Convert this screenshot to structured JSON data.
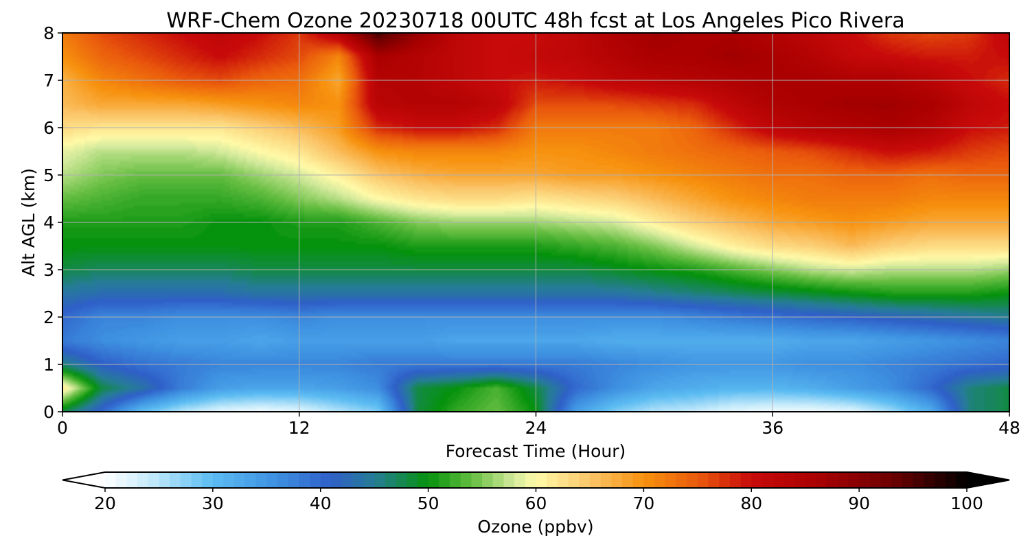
{
  "chart_data": {
    "type": "heatmap",
    "title": "WRF-Chem Ozone  20230718 00UTC 48h fcst at Los Angeles Pico Rivera",
    "xlabel": "Forecast Time (Hour)",
    "ylabel": "Alt AGL (km)",
    "xlim": [
      0,
      48
    ],
    "ylim": [
      0,
      8
    ],
    "xticks": [
      "0",
      "12",
      "24",
      "36",
      "48"
    ],
    "yticks": [
      "0",
      "1",
      "2",
      "3",
      "4",
      "5",
      "6",
      "7",
      "8"
    ],
    "grid": true,
    "colorbar": {
      "label": "Ozone  (ppbv)",
      "range": [
        20,
        100
      ],
      "extend": "both",
      "ticks": [
        "20",
        "30",
        "40",
        "50",
        "60",
        "70",
        "80",
        "90",
        "100"
      ],
      "stops": [
        {
          "value": 20,
          "color": "#ffffff"
        },
        {
          "value": 24,
          "color": "#c8ecfb"
        },
        {
          "value": 30,
          "color": "#5bbcf2"
        },
        {
          "value": 36,
          "color": "#3d8fe0"
        },
        {
          "value": 41,
          "color": "#2f5fc8"
        },
        {
          "value": 45,
          "color": "#267d96"
        },
        {
          "value": 50,
          "color": "#05920c"
        },
        {
          "value": 54,
          "color": "#64bd40"
        },
        {
          "value": 58,
          "color": "#d4ea9c"
        },
        {
          "value": 60,
          "color": "#fffaa8"
        },
        {
          "value": 65,
          "color": "#fbc66a"
        },
        {
          "value": 70,
          "color": "#f7910e"
        },
        {
          "value": 75,
          "color": "#ea5a0c"
        },
        {
          "value": 80,
          "color": "#c80a0a"
        },
        {
          "value": 86,
          "color": "#aa0000"
        },
        {
          "value": 93,
          "color": "#6e0000"
        },
        {
          "value": 100,
          "color": "#000000"
        }
      ]
    },
    "x_hours": [
      0,
      2,
      4,
      6,
      8,
      10,
      12,
      14,
      16,
      18,
      20,
      22,
      24,
      26,
      28,
      30,
      32,
      34,
      36,
      38,
      40,
      42,
      44,
      46,
      48
    ],
    "alt_km": [
      0,
      0.5,
      1,
      1.5,
      2,
      2.5,
      3,
      3.5,
      4,
      4.5,
      5,
      5.5,
      6,
      6.5,
      7,
      7.5,
      8
    ],
    "ozone_ppbv": [
      [
        48,
        40,
        30,
        25,
        22,
        21,
        22,
        25,
        28,
        48,
        52,
        54,
        50,
        34,
        28,
        25,
        24,
        22,
        21,
        21,
        22,
        26,
        32,
        46,
        48
      ],
      [
        62,
        48,
        44,
        38,
        34,
        33,
        33,
        34,
        36,
        48,
        50,
        53,
        48,
        40,
        36,
        33,
        32,
        31,
        31,
        32,
        34,
        36,
        40,
        46,
        48
      ],
      [
        46,
        41,
        39,
        38,
        37,
        37,
        37,
        37,
        38,
        38,
        38,
        38,
        38,
        38,
        37,
        36,
        35,
        35,
        35,
        36,
        36,
        37,
        38,
        39,
        40
      ],
      [
        38,
        36,
        35,
        34,
        34,
        33,
        34,
        34,
        34,
        34,
        33,
        33,
        33,
        33,
        32,
        32,
        32,
        32,
        32,
        33,
        33,
        34,
        35,
        36,
        37
      ],
      [
        40,
        37,
        37,
        36,
        36,
        36,
        37,
        36,
        36,
        36,
        36,
        36,
        36,
        36,
        36,
        36,
        37,
        38,
        39,
        40,
        41,
        42,
        43,
        44,
        45
      ],
      [
        44,
        43,
        43,
        43,
        43,
        44,
        44,
        44,
        44,
        44,
        44,
        44,
        44,
        44,
        44,
        45,
        46,
        47,
        48,
        49,
        50,
        51,
        51,
        51,
        50
      ],
      [
        48,
        47,
        47,
        47,
        47,
        48,
        48,
        48,
        48,
        48,
        48,
        48,
        48,
        48,
        49,
        50,
        51,
        53,
        55,
        57,
        58,
        57,
        57,
        57,
        56
      ],
      [
        50,
        50,
        50,
        50,
        50,
        50,
        50,
        50,
        50,
        51,
        51,
        51,
        51,
        52,
        53,
        55,
        58,
        61,
        63,
        64,
        66,
        64,
        63,
        63,
        63
      ],
      [
        51,
        51,
        51,
        51,
        50,
        50,
        51,
        51,
        53,
        55,
        56,
        56,
        56,
        57,
        58,
        61,
        64,
        66,
        68,
        69,
        70,
        69,
        68,
        68,
        68
      ],
      [
        54,
        53,
        52,
        52,
        52,
        53,
        55,
        57,
        60,
        62,
        63,
        63,
        62,
        63,
        64,
        66,
        68,
        70,
        71,
        72,
        72,
        72,
        71,
        71,
        71
      ],
      [
        57,
        55,
        54,
        54,
        54,
        56,
        58,
        61,
        65,
        67,
        68,
        68,
        68,
        69,
        69,
        70,
        71,
        72,
        73,
        73,
        74,
        74,
        73,
        74,
        74
      ],
      [
        59,
        57,
        57,
        57,
        58,
        60,
        62,
        66,
        70,
        71,
        71,
        71,
        70,
        70,
        71,
        72,
        73,
        74,
        75,
        76,
        78,
        80,
        79,
        77,
        76
      ],
      [
        63,
        62,
        62,
        62,
        62,
        64,
        66,
        69,
        78,
        80,
        80,
        78,
        72,
        72,
        72,
        72,
        74,
        78,
        82,
        84,
        85,
        86,
        84,
        80,
        79
      ],
      [
        66,
        68,
        68,
        68,
        69,
        70,
        71,
        70,
        83,
        84,
        84,
        82,
        76,
        76,
        76,
        77,
        78,
        82,
        85,
        86,
        87,
        87,
        86,
        82,
        80
      ],
      [
        67,
        71,
        73,
        75,
        76,
        74,
        73,
        68,
        84,
        84,
        82,
        80,
        79,
        80,
        82,
        83,
        84,
        85,
        86,
        86,
        85,
        85,
        83,
        80,
        78
      ],
      [
        70,
        74,
        76,
        78,
        80,
        78,
        76,
        71,
        86,
        84,
        82,
        80,
        81,
        82,
        84,
        86,
        86,
        87,
        86,
        84,
        81,
        80,
        79,
        79,
        80
      ],
      [
        72,
        76,
        78,
        80,
        82,
        80,
        77,
        84,
        96,
        88,
        82,
        80,
        80,
        82,
        85,
        87,
        86,
        86,
        84,
        82,
        80,
        77,
        76,
        77,
        82
      ]
    ]
  }
}
